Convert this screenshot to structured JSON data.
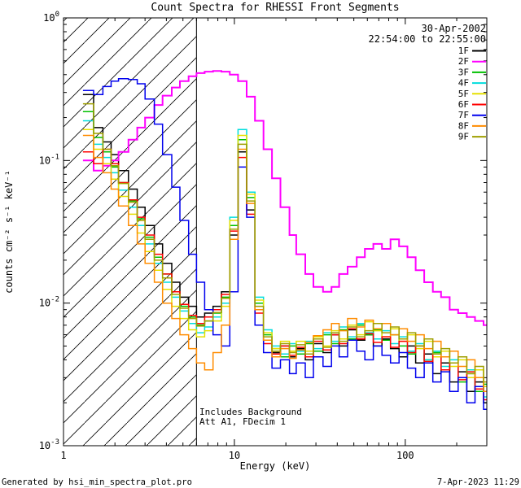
{
  "title": "Count Spectra for RHESSI Front Segments",
  "annotations": {
    "date": "30-Apr-2002",
    "time_range": "22:54:00 to 22:55:00",
    "includes_background": "Includes Background",
    "attenuator": "Att A1, FDecim 1",
    "annotation_color": "#008866"
  },
  "footer": {
    "left": "Generated by hsi_min_spectra_plot.pro",
    "right": "7-Apr-2023 11:29"
  },
  "chart_data": {
    "type": "line",
    "step": true,
    "x_scale": "log",
    "y_scale": "log",
    "xlabel": "Energy (keV)",
    "ylabel": "counts cm⁻² s⁻¹ keV⁻¹",
    "xlim": [
      1,
      300
    ],
    "ylim": [
      0.001,
      1
    ],
    "x_ticks": [
      1,
      10,
      100
    ],
    "y_ticks": [
      1,
      0.1,
      0.01,
      0.001
    ],
    "hatched_region_kev": [
      1,
      6
    ],
    "legend_position": "top-right",
    "frame_color": "#000000",
    "energies": [
      1.3,
      1.5,
      1.7,
      1.9,
      2.1,
      2.4,
      2.7,
      3.0,
      3.4,
      3.8,
      4.3,
      4.8,
      5.4,
      6.0,
      6.7,
      7.5,
      8.4,
      9.4,
      10.5,
      11.8,
      13.2,
      14.8,
      16.6,
      18.6,
      21,
      23,
      26,
      29,
      33,
      37,
      41,
      46,
      52,
      58,
      65,
      73,
      82,
      92,
      103,
      115,
      129,
      145,
      162,
      182,
      204,
      229,
      256,
      287
    ],
    "series": [
      {
        "name": "1F",
        "color": "#000000",
        "values": [
          0.29,
          0.17,
          0.135,
          0.11,
          0.085,
          0.063,
          0.047,
          0.035,
          0.026,
          0.019,
          0.014,
          0.011,
          0.0095,
          0.008,
          0.0085,
          0.0095,
          0.012,
          0.03,
          0.115,
          0.045,
          0.009,
          0.0055,
          0.0045,
          0.005,
          0.0042,
          0.0048,
          0.004,
          0.0052,
          0.0045,
          0.006,
          0.005,
          0.0065,
          0.0055,
          0.006,
          0.005,
          0.0056,
          0.0048,
          0.0042,
          0.005,
          0.0038,
          0.0044,
          0.0032,
          0.0038,
          0.0028,
          0.0033,
          0.0024,
          0.0028,
          0.002
        ]
      },
      {
        "name": "2F",
        "color": "#ff00ff",
        "values": [
          0.1,
          0.085,
          0.092,
          0.1,
          0.115,
          0.14,
          0.17,
          0.2,
          0.245,
          0.285,
          0.325,
          0.36,
          0.39,
          0.41,
          0.42,
          0.425,
          0.42,
          0.4,
          0.36,
          0.28,
          0.19,
          0.12,
          0.075,
          0.047,
          0.03,
          0.022,
          0.016,
          0.013,
          0.012,
          0.013,
          0.016,
          0.018,
          0.021,
          0.024,
          0.026,
          0.024,
          0.028,
          0.025,
          0.021,
          0.017,
          0.014,
          0.012,
          0.011,
          0.009,
          0.0085,
          0.008,
          0.0075,
          0.007
        ]
      },
      {
        "name": "3F",
        "color": "#00c000",
        "values": [
          0.22,
          0.145,
          0.115,
          0.09,
          0.07,
          0.052,
          0.039,
          0.029,
          0.021,
          0.016,
          0.012,
          0.0095,
          0.008,
          0.007,
          0.0075,
          0.0085,
          0.011,
          0.035,
          0.14,
          0.055,
          0.01,
          0.006,
          0.0048,
          0.0042,
          0.005,
          0.0044,
          0.0052,
          0.0046,
          0.006,
          0.0052,
          0.0065,
          0.0056,
          0.007,
          0.006,
          0.0065,
          0.0055,
          0.006,
          0.005,
          0.0044,
          0.005,
          0.004,
          0.0045,
          0.0034,
          0.0038,
          0.0028,
          0.0032,
          0.0024,
          0.0027
        ]
      },
      {
        "name": "4F",
        "color": "#00dddd",
        "values": [
          0.19,
          0.13,
          0.105,
          0.082,
          0.062,
          0.047,
          0.035,
          0.026,
          0.019,
          0.014,
          0.011,
          0.0088,
          0.0072,
          0.0062,
          0.0068,
          0.008,
          0.01,
          0.04,
          0.165,
          0.06,
          0.011,
          0.0065,
          0.005,
          0.0044,
          0.0052,
          0.0046,
          0.0054,
          0.0048,
          0.0062,
          0.0054,
          0.0068,
          0.0058,
          0.0072,
          0.0062,
          0.0056,
          0.0064,
          0.0052,
          0.0058,
          0.0046,
          0.0052,
          0.004,
          0.0046,
          0.0036,
          0.004,
          0.003,
          0.0034,
          0.0026,
          0.0022
        ]
      },
      {
        "name": "5F",
        "color": "#e6e000",
        "values": [
          0.165,
          0.12,
          0.095,
          0.074,
          0.056,
          0.042,
          0.031,
          0.023,
          0.017,
          0.0125,
          0.0095,
          0.0078,
          0.0065,
          0.0058,
          0.0064,
          0.0075,
          0.0095,
          0.038,
          0.15,
          0.058,
          0.0105,
          0.0062,
          0.0048,
          0.0054,
          0.0046,
          0.0054,
          0.0046,
          0.0058,
          0.005,
          0.0064,
          0.0056,
          0.007,
          0.006,
          0.0074,
          0.0064,
          0.0058,
          0.0066,
          0.0054,
          0.006,
          0.0048,
          0.0054,
          0.0042,
          0.0046,
          0.0036,
          0.004,
          0.003,
          0.0034,
          0.0026
        ]
      },
      {
        "name": "6F",
        "color": "#ff0000",
        "values": [
          0.115,
          0.095,
          0.12,
          0.095,
          0.07,
          0.053,
          0.04,
          0.03,
          0.022,
          0.016,
          0.012,
          0.0098,
          0.0082,
          0.0072,
          0.008,
          0.009,
          0.0115,
          0.032,
          0.105,
          0.042,
          0.0085,
          0.0052,
          0.0044,
          0.005,
          0.0043,
          0.0049,
          0.0042,
          0.0054,
          0.0047,
          0.006,
          0.0052,
          0.0066,
          0.0056,
          0.0061,
          0.0053,
          0.0058,
          0.0049,
          0.0054,
          0.0045,
          0.005,
          0.0039,
          0.0044,
          0.0034,
          0.0038,
          0.0029,
          0.0033,
          0.0025,
          0.0021
        ]
      },
      {
        "name": "7F",
        "color": "#0000ee",
        "values": [
          0.31,
          0.29,
          0.33,
          0.36,
          0.375,
          0.37,
          0.345,
          0.27,
          0.18,
          0.11,
          0.065,
          0.038,
          0.022,
          0.014,
          0.009,
          0.006,
          0.005,
          0.012,
          0.09,
          0.04,
          0.007,
          0.0045,
          0.0035,
          0.004,
          0.0032,
          0.0038,
          0.003,
          0.0042,
          0.0036,
          0.005,
          0.0042,
          0.0055,
          0.0046,
          0.004,
          0.005,
          0.0043,
          0.0038,
          0.0045,
          0.0035,
          0.003,
          0.0038,
          0.0028,
          0.0033,
          0.0024,
          0.003,
          0.002,
          0.0026,
          0.0018
        ]
      },
      {
        "name": "8F",
        "color": "#ff8c00",
        "values": [
          0.15,
          0.105,
          0.082,
          0.063,
          0.048,
          0.035,
          0.026,
          0.019,
          0.014,
          0.01,
          0.0078,
          0.006,
          0.0048,
          0.0038,
          0.0034,
          0.0045,
          0.007,
          0.028,
          0.12,
          0.05,
          0.009,
          0.0055,
          0.0042,
          0.0048,
          0.0041,
          0.0047,
          0.0053,
          0.0059,
          0.0065,
          0.0072,
          0.0064,
          0.0078,
          0.0068,
          0.0076,
          0.0066,
          0.0072,
          0.006,
          0.0066,
          0.0054,
          0.006,
          0.0048,
          0.0054,
          0.0042,
          0.0046,
          0.0036,
          0.004,
          0.003,
          0.0024
        ]
      },
      {
        "name": "9F",
        "color": "#9f9f00",
        "values": [
          0.25,
          0.155,
          0.12,
          0.092,
          0.069,
          0.051,
          0.038,
          0.028,
          0.02,
          0.015,
          0.0115,
          0.0092,
          0.0078,
          0.0069,
          0.0075,
          0.0086,
          0.0108,
          0.033,
          0.13,
          0.052,
          0.0095,
          0.0058,
          0.0046,
          0.0052,
          0.0045,
          0.0051,
          0.0044,
          0.0056,
          0.0049,
          0.0062,
          0.0054,
          0.0068,
          0.0058,
          0.0064,
          0.0072,
          0.0062,
          0.0068,
          0.0056,
          0.0062,
          0.005,
          0.0056,
          0.0044,
          0.0048,
          0.0038,
          0.0042,
          0.0032,
          0.0036,
          0.0028
        ]
      }
    ]
  }
}
